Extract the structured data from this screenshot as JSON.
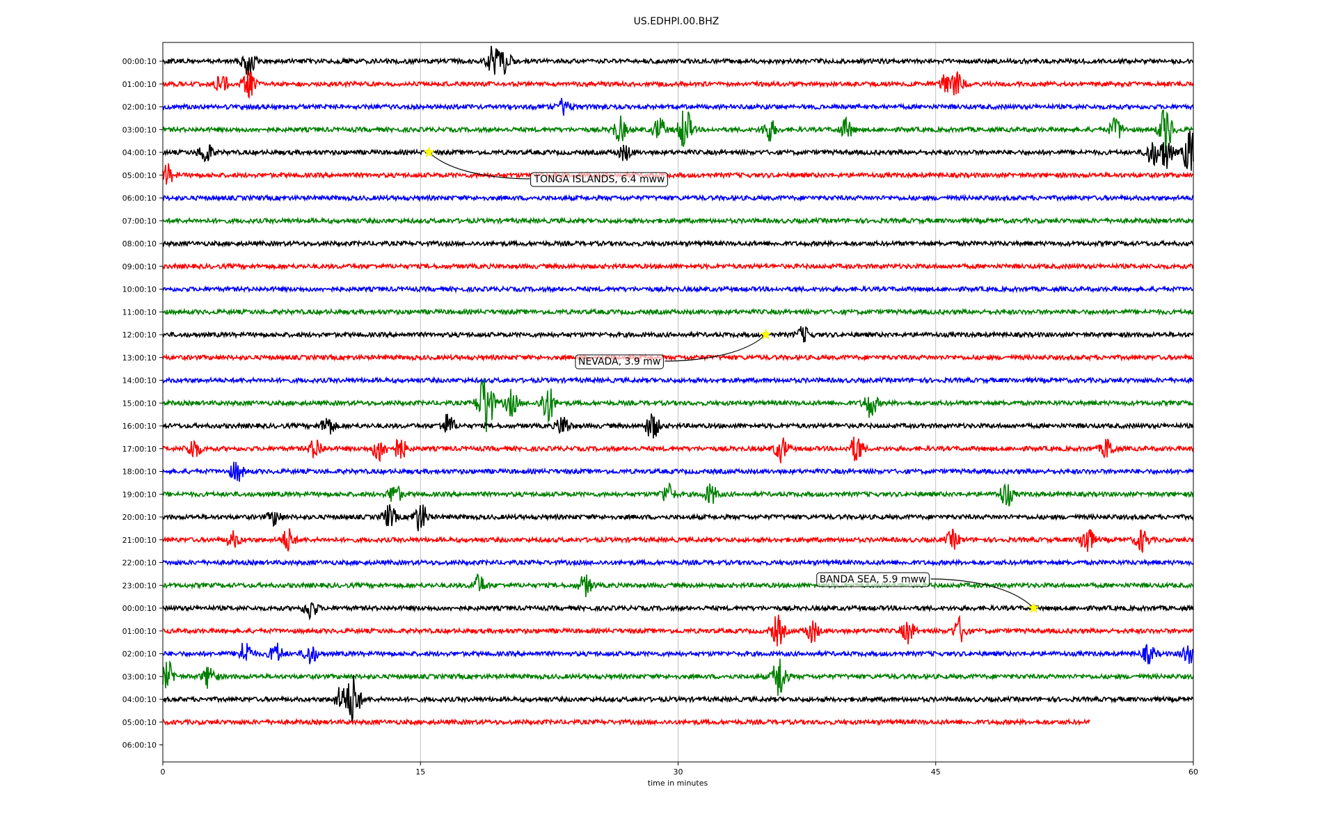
{
  "chart_data": {
    "type": "line",
    "title": "US.EDHPI.00.BHZ",
    "xlabel": "time in minutes",
    "ylabel": "",
    "xlim": [
      0,
      60
    ],
    "x_ticks": [
      0,
      15,
      30,
      45,
      60
    ],
    "x_tick_labels": [
      "0",
      "15",
      "30",
      "45",
      "60"
    ],
    "grid": "vertical lines at x ticks",
    "trace_colors": [
      "#000000",
      "#ff0000",
      "#0000ff",
      "#008000"
    ],
    "trace_end_minute": 54,
    "row_labels": [
      "00:00:10",
      "01:00:10",
      "02:00:10",
      "03:00:10",
      "04:00:10",
      "05:00:10",
      "06:00:10",
      "07:00:10",
      "08:00:10",
      "09:00:10",
      "10:00:10",
      "11:00:10",
      "12:00:10",
      "13:00:10",
      "14:00:10",
      "15:00:10",
      "16:00:10",
      "17:00:10",
      "18:00:10",
      "19:00:10",
      "20:00:10",
      "21:00:10",
      "22:00:10",
      "23:00:10",
      "00:00:10",
      "01:00:10",
      "02:00:10",
      "03:00:10",
      "04:00:10",
      "05:00:10",
      "06:00:10"
    ],
    "events": [
      {
        "label": "TONGA ISLANDS, 6.4 mww",
        "row": 4,
        "minute": 15.5
      },
      {
        "label": "NEVADA, 3.9 mw",
        "row": 12,
        "minute": 35.1
      },
      {
        "label": "BANDA SEA, 5.9 mww",
        "row": 24,
        "minute": 50.7
      }
    ],
    "bursts": [
      {
        "row": 0,
        "minute": 5.0,
        "amp": 2.4
      },
      {
        "row": 0,
        "minute": 19.2,
        "amp": 2.2
      },
      {
        "row": 0,
        "minute": 19.9,
        "amp": 1.8
      },
      {
        "row": 1,
        "minute": 3.4,
        "amp": 1.6
      },
      {
        "row": 1,
        "minute": 5.0,
        "amp": 2.0
      },
      {
        "row": 1,
        "minute": 45.7,
        "amp": 2.0
      },
      {
        "row": 1,
        "minute": 46.3,
        "amp": 1.6
      },
      {
        "row": 2,
        "minute": 23.3,
        "amp": 1.2
      },
      {
        "row": 3,
        "minute": 26.6,
        "amp": 2.0
      },
      {
        "row": 3,
        "minute": 28.9,
        "amp": 1.8
      },
      {
        "row": 3,
        "minute": 30.4,
        "amp": 3.6
      },
      {
        "row": 3,
        "minute": 35.3,
        "amp": 1.8
      },
      {
        "row": 3,
        "minute": 39.8,
        "amp": 1.6
      },
      {
        "row": 3,
        "minute": 55.5,
        "amp": 1.8
      },
      {
        "row": 3,
        "minute": 58.4,
        "amp": 3.8
      },
      {
        "row": 4,
        "minute": 2.5,
        "amp": 1.8
      },
      {
        "row": 4,
        "minute": 26.9,
        "amp": 1.2
      },
      {
        "row": 4,
        "minute": 57.6,
        "amp": 2.0
      },
      {
        "row": 4,
        "minute": 58.4,
        "amp": 2.6
      },
      {
        "row": 4,
        "minute": 59.8,
        "amp": 3.8
      },
      {
        "row": 5,
        "minute": 0.2,
        "amp": 1.8
      },
      {
        "row": 12,
        "minute": 37.3,
        "amp": 1.2
      },
      {
        "row": 15,
        "minute": 18.6,
        "amp": 2.2
      },
      {
        "row": 15,
        "minute": 18.9,
        "amp": 4.0
      },
      {
        "row": 15,
        "minute": 20.3,
        "amp": 2.0
      },
      {
        "row": 15,
        "minute": 22.4,
        "amp": 3.2
      },
      {
        "row": 15,
        "minute": 41.2,
        "amp": 2.2
      },
      {
        "row": 16,
        "minute": 9.6,
        "amp": 1.6
      },
      {
        "row": 16,
        "minute": 16.6,
        "amp": 1.8
      },
      {
        "row": 16,
        "minute": 23.3,
        "amp": 1.6
      },
      {
        "row": 16,
        "minute": 28.5,
        "amp": 2.2
      },
      {
        "row": 17,
        "minute": 1.8,
        "amp": 1.6
      },
      {
        "row": 17,
        "minute": 8.9,
        "amp": 1.6
      },
      {
        "row": 17,
        "minute": 12.6,
        "amp": 2.0
      },
      {
        "row": 17,
        "minute": 13.8,
        "amp": 1.8
      },
      {
        "row": 17,
        "minute": 36.0,
        "amp": 2.0
      },
      {
        "row": 17,
        "minute": 40.4,
        "amp": 2.2
      },
      {
        "row": 17,
        "minute": 55.0,
        "amp": 1.6
      },
      {
        "row": 18,
        "minute": 4.3,
        "amp": 1.6
      },
      {
        "row": 19,
        "minute": 13.5,
        "amp": 1.6
      },
      {
        "row": 19,
        "minute": 29.4,
        "amp": 1.6
      },
      {
        "row": 19,
        "minute": 31.9,
        "amp": 1.6
      },
      {
        "row": 19,
        "minute": 49.1,
        "amp": 2.0
      },
      {
        "row": 20,
        "minute": 6.5,
        "amp": 1.2
      },
      {
        "row": 20,
        "minute": 13.2,
        "amp": 1.8
      },
      {
        "row": 20,
        "minute": 15.0,
        "amp": 2.4
      },
      {
        "row": 21,
        "minute": 4.1,
        "amp": 1.2
      },
      {
        "row": 21,
        "minute": 7.3,
        "amp": 1.8
      },
      {
        "row": 21,
        "minute": 46.0,
        "amp": 1.4
      },
      {
        "row": 21,
        "minute": 53.8,
        "amp": 2.4
      },
      {
        "row": 21,
        "minute": 57.0,
        "amp": 1.8
      },
      {
        "row": 23,
        "minute": 18.4,
        "amp": 1.6
      },
      {
        "row": 23,
        "minute": 24.6,
        "amp": 1.6
      },
      {
        "row": 24,
        "minute": 8.6,
        "amp": 1.6
      },
      {
        "row": 25,
        "minute": 35.8,
        "amp": 2.4
      },
      {
        "row": 25,
        "minute": 37.8,
        "amp": 1.8
      },
      {
        "row": 25,
        "minute": 43.4,
        "amp": 1.8
      },
      {
        "row": 25,
        "minute": 46.4,
        "amp": 2.0
      },
      {
        "row": 26,
        "minute": 4.8,
        "amp": 2.0
      },
      {
        "row": 26,
        "minute": 6.6,
        "amp": 1.6
      },
      {
        "row": 26,
        "minute": 8.6,
        "amp": 1.6
      },
      {
        "row": 26,
        "minute": 57.4,
        "amp": 1.4
      },
      {
        "row": 26,
        "minute": 59.7,
        "amp": 1.6
      },
      {
        "row": 27,
        "minute": 0.3,
        "amp": 2.2
      },
      {
        "row": 27,
        "minute": 2.7,
        "amp": 1.8
      },
      {
        "row": 27,
        "minute": 35.9,
        "amp": 3.6
      },
      {
        "row": 28,
        "minute": 10.4,
        "amp": 2.0
      },
      {
        "row": 28,
        "minute": 11.1,
        "amp": 4.0
      }
    ]
  }
}
